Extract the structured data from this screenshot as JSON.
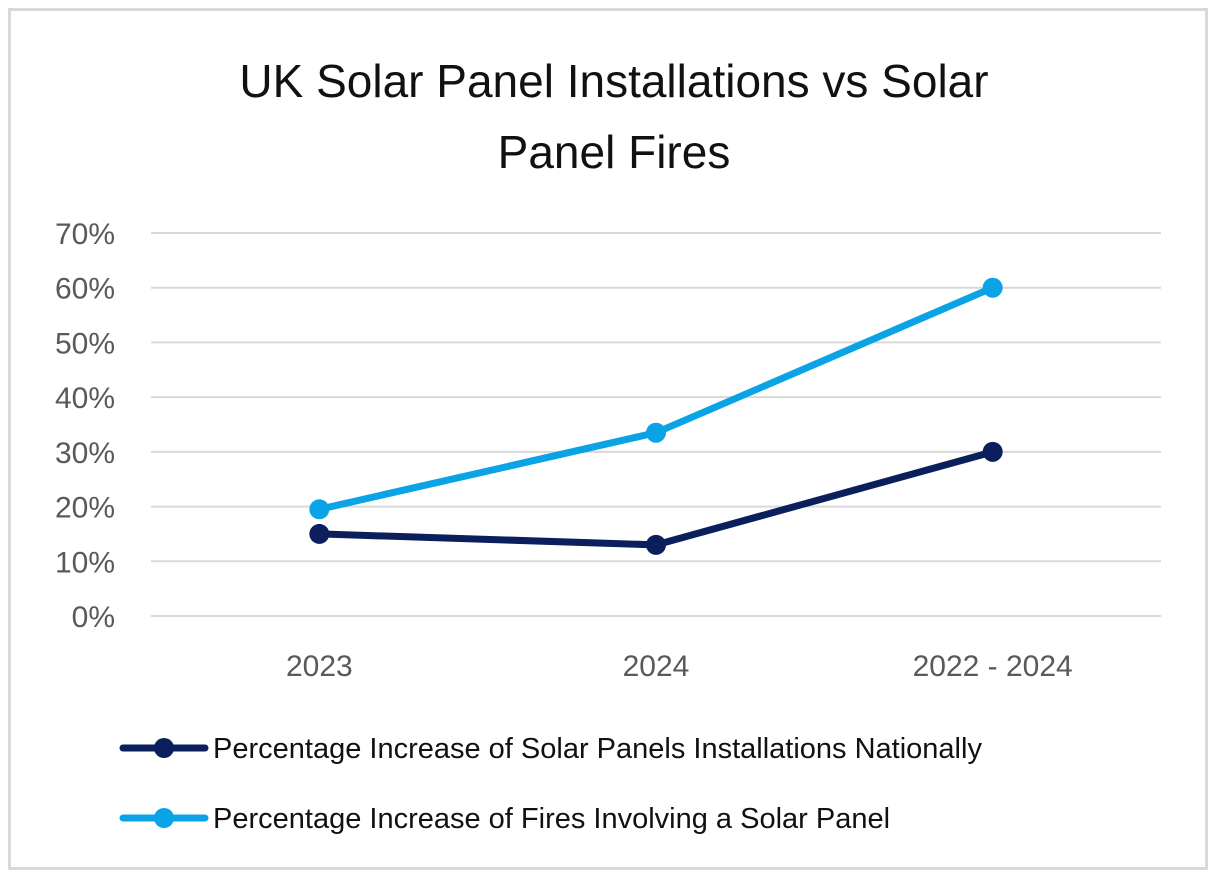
{
  "chart_data": {
    "type": "line",
    "title_lines": [
      "UK Solar Panel Installations vs Solar",
      "Panel Fires"
    ],
    "categories": [
      "2023",
      "2024",
      "2022 - 2024"
    ],
    "series": [
      {
        "name": "Percentage Increase of Solar Panels Installations Nationally",
        "values": [
          15,
          13,
          30
        ],
        "color": "#0a1f5c"
      },
      {
        "name": "Percentage Increase of Fires Involving a Solar Panel",
        "values": [
          19.5,
          33.5,
          60
        ],
        "color": "#0aa3e6"
      }
    ],
    "y_ticks": [
      "0%",
      "10%",
      "20%",
      "30%",
      "40%",
      "50%",
      "60%",
      "70%"
    ],
    "ylim": [
      0,
      70
    ],
    "grid": true,
    "legend_position": "bottom",
    "xlabel": "",
    "ylabel": ""
  }
}
